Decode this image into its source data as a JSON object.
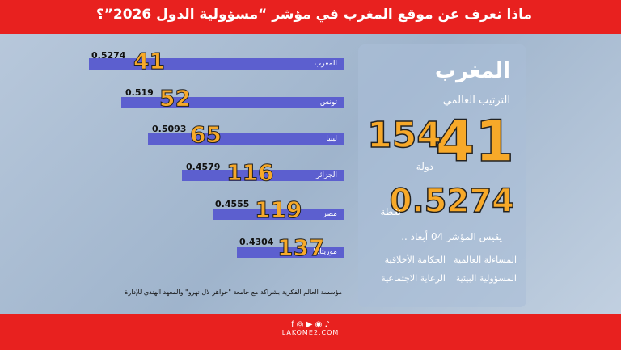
{
  "header": {
    "title": "ماذا نعرف عن موقع المغرب في مؤشر “مسؤولية الدول 2026”؟"
  },
  "rows": [
    {
      "country": "المغرب",
      "rank": "41",
      "score": "0.5274"
    },
    {
      "country": "تونس",
      "rank": "52",
      "score": "0.519"
    },
    {
      "country": "ليبيا",
      "rank": "65",
      "score": "0.5093"
    },
    {
      "country": "الجزائر",
      "rank": "116",
      "score": "0.4579"
    },
    {
      "country": "مصر",
      "rank": "119",
      "score": "0.4555"
    },
    {
      "country": "موريتانيا",
      "rank": "137",
      "score": "0.4304"
    }
  ],
  "panel": {
    "country": "المغرب",
    "rank_label": "الترتيب العالمي",
    "rank": "41",
    "total": "154",
    "total_label": "دولة",
    "score": "0.5274",
    "score_label": "نقطة",
    "measures": "يقيس المؤشر 04 أبعاد ..",
    "dimensions": [
      "الحكامة الأخلاقية",
      "المساءلة العالمية",
      "الرعاية الاجتماعية",
      "المسؤولية البيئية"
    ]
  },
  "source": "مؤسسة العالم الفكرية بشراكة مع جامعة \"جواهر لال نهرو\" والمعهد الهندي للإدارة",
  "footer": {
    "site": "LAKOME2.COM"
  }
}
